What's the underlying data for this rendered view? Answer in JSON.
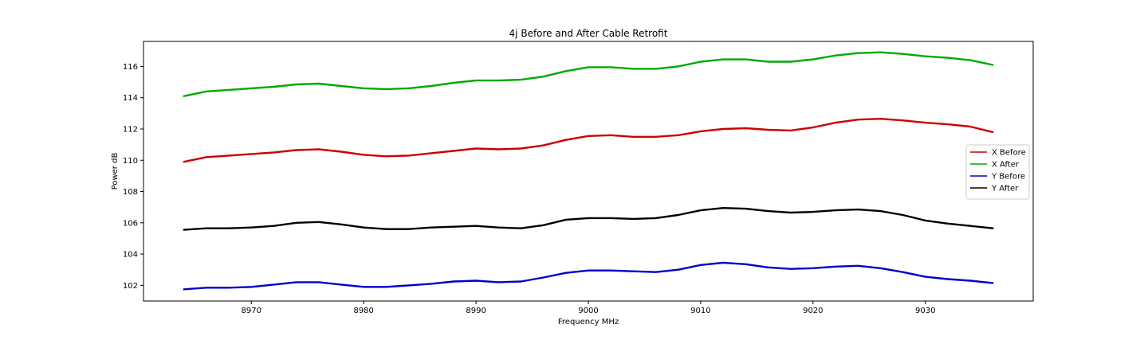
{
  "chart_data": {
    "type": "line",
    "title": "4j Before and After Cable Retrofit",
    "xlabel": "Frequency MHz",
    "ylabel": "Power dB",
    "xlim": [
      8960.4,
      9039.6
    ],
    "ylim": [
      101.0,
      117.6
    ],
    "xticks": [
      8970,
      8980,
      8990,
      9000,
      9010,
      9020,
      9030
    ],
    "yticks": [
      102,
      104,
      106,
      108,
      110,
      112,
      114,
      116
    ],
    "grid": false,
    "legend": {
      "position": "center-right"
    },
    "series": [
      {
        "name": "X Before",
        "color": "#cc0000",
        "x": [
          8964,
          8966,
          8968,
          8970,
          8972,
          8974,
          8976,
          8978,
          8980,
          8982,
          8984,
          8986,
          8988,
          8990,
          8992,
          8994,
          8996,
          8998,
          9000,
          9002,
          9004,
          9006,
          9008,
          9010,
          9012,
          9014,
          9016,
          9018,
          9020,
          9022,
          9024,
          9026,
          9028,
          9030,
          9032,
          9034,
          9036
        ],
        "y": [
          109.9,
          110.2,
          110.3,
          110.4,
          110.5,
          110.65,
          110.7,
          110.55,
          110.35,
          110.25,
          110.3,
          110.45,
          110.6,
          110.75,
          110.7,
          110.75,
          110.95,
          111.3,
          111.55,
          111.6,
          111.5,
          111.5,
          111.6,
          111.85,
          112.0,
          112.05,
          111.95,
          111.9,
          112.1,
          112.4,
          112.6,
          112.65,
          112.55,
          112.4,
          112.3,
          112.15,
          111.8
        ]
      },
      {
        "name": "X After",
        "color": "#00aa00",
        "x": [
          8964,
          8966,
          8968,
          8970,
          8972,
          8974,
          8976,
          8978,
          8980,
          8982,
          8984,
          8986,
          8988,
          8990,
          8992,
          8994,
          8996,
          8998,
          9000,
          9002,
          9004,
          9006,
          9008,
          9010,
          9012,
          9014,
          9016,
          9018,
          9020,
          9022,
          9024,
          9026,
          9028,
          9030,
          9032,
          9034,
          9036
        ],
        "y": [
          114.1,
          114.4,
          114.5,
          114.6,
          114.7,
          114.85,
          114.9,
          114.75,
          114.6,
          114.55,
          114.6,
          114.75,
          114.95,
          115.1,
          115.1,
          115.15,
          115.35,
          115.7,
          115.95,
          115.95,
          115.85,
          115.85,
          116.0,
          116.3,
          116.45,
          116.45,
          116.3,
          116.3,
          116.45,
          116.7,
          116.85,
          116.9,
          116.8,
          116.65,
          116.55,
          116.4,
          116.1
        ]
      },
      {
        "name": "Y Before",
        "color": "#0000cc",
        "x": [
          8964,
          8966,
          8968,
          8970,
          8972,
          8974,
          8976,
          8978,
          8980,
          8982,
          8984,
          8986,
          8988,
          8990,
          8992,
          8994,
          8996,
          8998,
          9000,
          9002,
          9004,
          9006,
          9008,
          9010,
          9012,
          9014,
          9016,
          9018,
          9020,
          9022,
          9024,
          9026,
          9028,
          9030,
          9032,
          9034,
          9036
        ],
        "y": [
          101.75,
          101.85,
          101.85,
          101.9,
          102.05,
          102.2,
          102.2,
          102.05,
          101.9,
          101.9,
          102.0,
          102.1,
          102.25,
          102.3,
          102.2,
          102.25,
          102.5,
          102.8,
          102.95,
          102.95,
          102.9,
          102.85,
          103.0,
          103.3,
          103.45,
          103.35,
          103.15,
          103.05,
          103.1,
          103.2,
          103.25,
          103.1,
          102.85,
          102.55,
          102.4,
          102.3,
          102.15
        ]
      },
      {
        "name": "Y After",
        "color": "#000000",
        "x": [
          8964,
          8966,
          8968,
          8970,
          8972,
          8974,
          8976,
          8978,
          8980,
          8982,
          8984,
          8986,
          8988,
          8990,
          8992,
          8994,
          8996,
          8998,
          9000,
          9002,
          9004,
          9006,
          9008,
          9010,
          9012,
          9014,
          9016,
          9018,
          9020,
          9022,
          9024,
          9026,
          9028,
          9030,
          9032,
          9034,
          9036
        ],
        "y": [
          105.55,
          105.65,
          105.65,
          105.7,
          105.8,
          106.0,
          106.05,
          105.9,
          105.7,
          105.6,
          105.6,
          105.7,
          105.75,
          105.8,
          105.7,
          105.65,
          105.85,
          106.2,
          106.3,
          106.3,
          106.25,
          106.3,
          106.5,
          106.8,
          106.95,
          106.9,
          106.75,
          106.65,
          106.7,
          106.8,
          106.85,
          106.75,
          106.5,
          106.15,
          105.95,
          105.8,
          105.65
        ]
      }
    ]
  }
}
